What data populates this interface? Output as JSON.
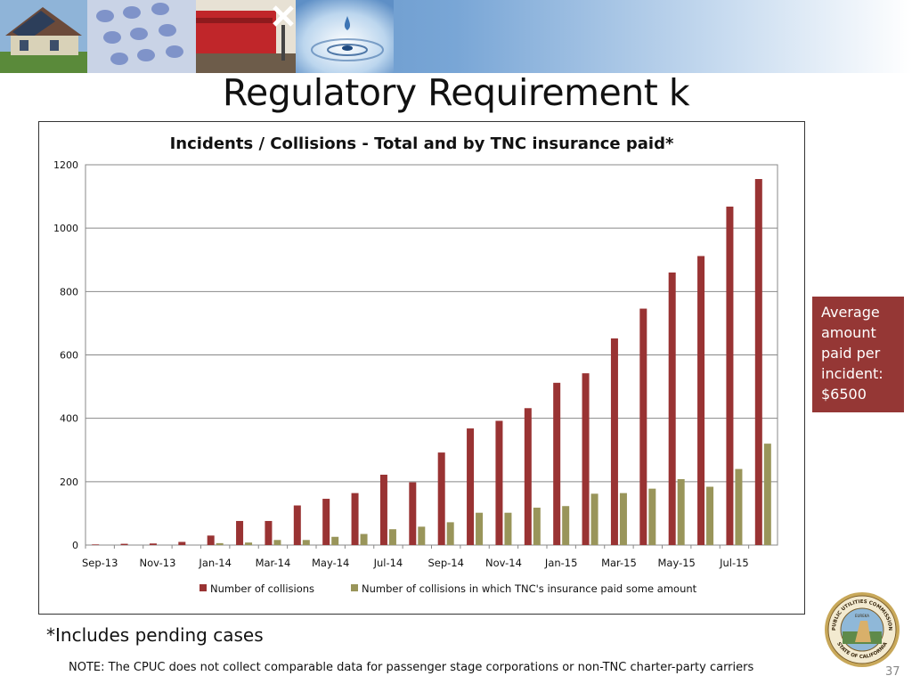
{
  "slide": {
    "title": "Regulatory Requirement k",
    "footnote": "*Includes pending cases",
    "note": "NOTE: The CPUC does not collect comparable data for passenger stage corporations or non-TNC charter-party carriers",
    "page_number": "37"
  },
  "callout": {
    "lines": [
      "Average",
      "amount",
      "paid per",
      "incident:",
      "$6500"
    ],
    "color": "#953735"
  },
  "banner": {
    "images": [
      "house-solar-photo",
      "telephone-keypad-photo",
      "train-crossing-photo",
      "water-drop-photo"
    ]
  },
  "seal": {
    "name": "cpuc-seal",
    "text_top": "PUBLIC UTILITIES COMMISSION",
    "text_bottom": "STATE OF CALIFORNIA",
    "motto": "EUREKA"
  },
  "chart_data": {
    "type": "bar",
    "title": "Incidents / Collisions - Total and by TNC insurance paid*",
    "xlabel": "",
    "ylabel": "",
    "ylim": [
      0,
      1200
    ],
    "yticks": [
      0,
      200,
      400,
      600,
      800,
      1000,
      1200
    ],
    "grid": true,
    "legend_position": "bottom",
    "categories": [
      "Sep-13",
      "Oct-13",
      "Nov-13",
      "Dec-13",
      "Jan-14",
      "Feb-14",
      "Mar-14",
      "Apr-14",
      "May-14",
      "Jun-14",
      "Jul-14",
      "Aug-14",
      "Sep-14",
      "Oct-14",
      "Nov-14",
      "Dec-14",
      "Jan-15",
      "Feb-15",
      "Mar-15",
      "Apr-15",
      "May-15",
      "Jun-15",
      "Jul-15",
      "Aug-15"
    ],
    "tick_labels": [
      "Sep-13",
      "",
      "Nov-13",
      "",
      "Jan-14",
      "",
      "Mar-14",
      "",
      "May-14",
      "",
      "Jul-14",
      "",
      "Sep-14",
      "",
      "Nov-14",
      "",
      "Jan-15",
      "",
      "Mar-15",
      "",
      "May-15",
      "",
      "Jul-15",
      ""
    ],
    "series": [
      {
        "name": "Number of collisions",
        "color": "#993333",
        "values": [
          2,
          4,
          5,
          10,
          30,
          76,
          76,
          125,
          146,
          164,
          222,
          198,
          292,
          368,
          392,
          432,
          512,
          542,
          652,
          746,
          860,
          912,
          1068,
          1155
        ]
      },
      {
        "name": "Number of collisions in which TNC's insurance paid some amount",
        "color": "#99955a",
        "values": [
          0,
          0,
          0,
          0,
          6,
          8,
          16,
          16,
          26,
          35,
          50,
          58,
          72,
          102,
          102,
          118,
          123,
          162,
          164,
          178,
          208,
          184,
          240,
          320
        ]
      }
    ]
  }
}
